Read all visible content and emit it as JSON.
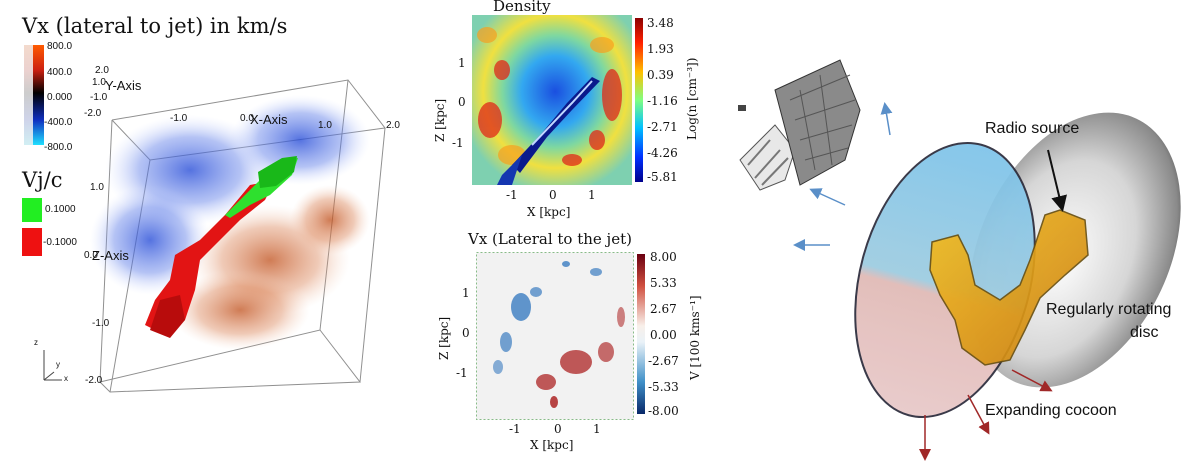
{
  "left_panel": {
    "title": "Vx (lateral to jet) in km/s",
    "vx_colorbar_ticks": [
      "800.0",
      "400.0",
      "0.000",
      "-400.0",
      "-800.0"
    ],
    "vj_title": "Vj/c",
    "vj_legend": [
      {
        "label": "0.1000",
        "color": "#22ee22"
      },
      {
        "label": "-0.1000",
        "color": "#ee1111"
      }
    ],
    "y_axis_label": "Y-Axis",
    "x_axis_label": "X-Axis",
    "z_axis_label": "Z-Axis",
    "small_ticks_y": [
      "2.0",
      "1.0",
      "-1.0",
      "-2.0"
    ],
    "top_ticks": [
      "-1.0",
      "0.0",
      "1.0",
      "2.0"
    ],
    "left_ticks": [
      "1.0",
      "0.0",
      "-1.0",
      "-2.0"
    ],
    "small_axis_z": "z",
    "small_axis_y": "y",
    "small_axis_x": "x"
  },
  "density_panel": {
    "title": "Density",
    "colorbar_label": "Log(n [cm⁻³])",
    "colorbar_ticks": [
      "3.48",
      "1.93",
      "0.39",
      "-1.16",
      "-2.71",
      "-4.26",
      "-5.81"
    ],
    "x_label": "X [kpc]",
    "y_label": "Z [kpc]",
    "x_ticks": [
      "-1",
      "0",
      "1"
    ],
    "y_ticks": [
      "1",
      "0",
      "-1"
    ]
  },
  "vx_panel": {
    "title": "Vx (Lateral to the jet)",
    "colorbar_label": "V [100 kms⁻¹]",
    "colorbar_ticks": [
      "8.00",
      "5.33",
      "2.67",
      "0.00",
      "-2.67",
      "-5.33",
      "-8.00"
    ],
    "x_label": "X [kpc]",
    "y_label": "Z [kpc]",
    "x_ticks": [
      "-1",
      "0",
      "1"
    ],
    "y_ticks": [
      "1",
      "0",
      "-1"
    ]
  },
  "schematic": {
    "radio_source": "Radio source",
    "disc_line1": "Regularly rotating",
    "disc_line2": "disc",
    "cocoon": "Expanding cocoon",
    "colors": {
      "blue_arrow": "#5a8fc8",
      "red_arrow": "#a02828",
      "cocoon_blue": "#7cc3ea",
      "cocoon_pink": "#e8b8b8",
      "source": "#e3a81c"
    }
  }
}
